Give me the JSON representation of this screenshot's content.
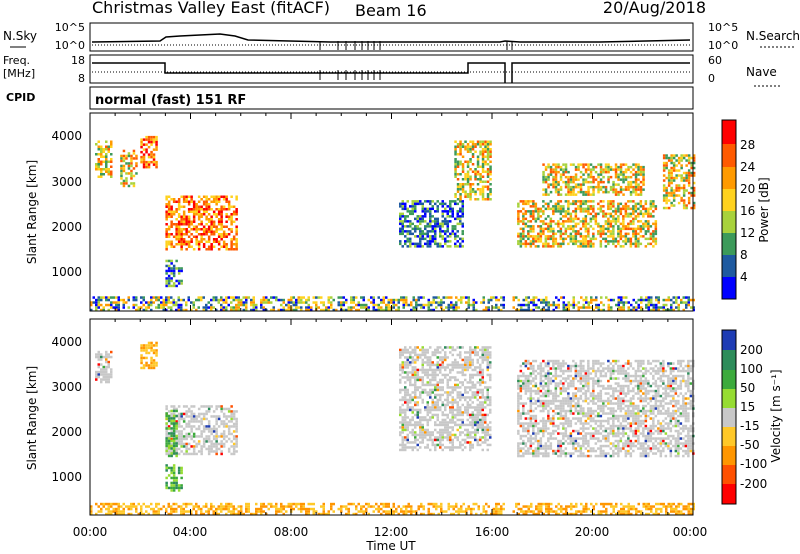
{
  "header": {
    "title": "Christmas Valley East (fitACF)",
    "beam": "Beam 16",
    "date": "20/Aug/2018"
  },
  "strips": {
    "nsky_label": "N.Sky",
    "nsky_ticks": [
      "10^5",
      "10^0"
    ],
    "nsearch_label": "N.Search",
    "nsearch_ticks": [
      "10^5",
      "10^0"
    ],
    "freq_label_line1": "Freq.",
    "freq_label_line2": "[MHz]",
    "freq_ticks": [
      "18",
      "8"
    ],
    "nave_label": "Nave",
    "nave_ticks": [
      "60",
      "0"
    ],
    "cpid_label": "CPID",
    "cpid_text": "normal (fast) 151 RF"
  },
  "xaxis": {
    "label": "Time UT",
    "ticks": [
      "00:00",
      "04:00",
      "08:00",
      "12:00",
      "16:00",
      "20:00",
      "00:00"
    ],
    "range_hours": [
      0,
      24
    ]
  },
  "power_panel": {
    "ylabel": "Slant Range [km]",
    "yticks": [
      "4000",
      "3000",
      "2000",
      "1000"
    ],
    "cbar_label": "Power [dB]",
    "cbar_ticks": [
      "28",
      "24",
      "20",
      "16",
      "12",
      "8",
      "4"
    ],
    "cbar_colors": [
      "#ff0000",
      "#ff5a00",
      "#ff9a00",
      "#ffd21e",
      "#a8d23c",
      "#3c9a5a",
      "#1e5aa0",
      "#0000ff"
    ]
  },
  "velocity_panel": {
    "ylabel": "Slant Range [km]",
    "yticks": [
      "4000",
      "3000",
      "2000",
      "1000"
    ],
    "cbar_label": "Velocity [m s⁻¹]",
    "cbar_ticks": [
      "200",
      "100",
      "50",
      "15",
      "-15",
      "-50",
      "-100",
      "-200"
    ],
    "cbar_colors": [
      "#1e3cb4",
      "#2d8c5a",
      "#3caa3c",
      "#96dc32",
      "#c8c8c8",
      "#ffc828",
      "#ff9600",
      "#ff5000",
      "#ff0000"
    ]
  },
  "chart_data": {
    "type": "heatmap",
    "x_unit": "hours UT",
    "y_unit": "slant range km",
    "xlim": [
      0,
      24
    ],
    "ylim": [
      180,
      4500
    ],
    "power_regions": [
      {
        "t0": 0.2,
        "t1": 0.8,
        "r0": 3100,
        "r1": 3900,
        "level": "mid"
      },
      {
        "t0": 1.2,
        "t1": 1.8,
        "r0": 2900,
        "r1": 3700,
        "level": "mid"
      },
      {
        "t0": 2.0,
        "t1": 2.6,
        "r0": 3300,
        "r1": 4000,
        "level": "high"
      },
      {
        "t0": 3.0,
        "t1": 5.8,
        "r0": 1500,
        "r1": 2700,
        "level": "high"
      },
      {
        "t0": 3.0,
        "t1": 3.6,
        "r0": 700,
        "r1": 1300,
        "level": "low"
      },
      {
        "t0": 12.3,
        "t1": 14.8,
        "r0": 1600,
        "r1": 2600,
        "level": "low"
      },
      {
        "t0": 14.5,
        "t1": 15.9,
        "r0": 2600,
        "r1": 3900,
        "level": "mid"
      },
      {
        "t0": 17.0,
        "t1": 22.5,
        "r0": 1600,
        "r1": 2600,
        "level": "mid"
      },
      {
        "t0": 18.0,
        "t1": 22.0,
        "r0": 2700,
        "r1": 3400,
        "level": "mid"
      },
      {
        "t0": 22.8,
        "t1": 24.0,
        "r0": 2400,
        "r1": 3600,
        "level": "mid"
      },
      {
        "t0": 0.0,
        "t1": 24.0,
        "r0": 200,
        "r1": 500,
        "level": "mixed"
      }
    ],
    "velocity_regions": [
      {
        "t0": 0.2,
        "t1": 0.8,
        "r0": 3100,
        "r1": 3800,
        "class": "near-zero"
      },
      {
        "t0": 2.0,
        "t1": 2.6,
        "r0": 3400,
        "r1": 4000,
        "class": "negative"
      },
      {
        "t0": 3.0,
        "t1": 5.8,
        "r0": 1500,
        "r1": 2600,
        "class": "near-zero"
      },
      {
        "t0": 3.0,
        "t1": 3.4,
        "r0": 1500,
        "r1": 2500,
        "class": "positive"
      },
      {
        "t0": 3.0,
        "t1": 3.6,
        "r0": 700,
        "r1": 1300,
        "class": "positive"
      },
      {
        "t0": 12.3,
        "t1": 15.9,
        "r0": 1600,
        "r1": 3900,
        "class": "near-zero"
      },
      {
        "t0": 17.0,
        "t1": 24.0,
        "r0": 1500,
        "r1": 3600,
        "class": "near-zero"
      },
      {
        "t0": 0.0,
        "t1": 24.0,
        "r0": 200,
        "r1": 450,
        "class": "negative"
      }
    ],
    "data_gap_hours": [
      16.5,
      16.8
    ]
  }
}
